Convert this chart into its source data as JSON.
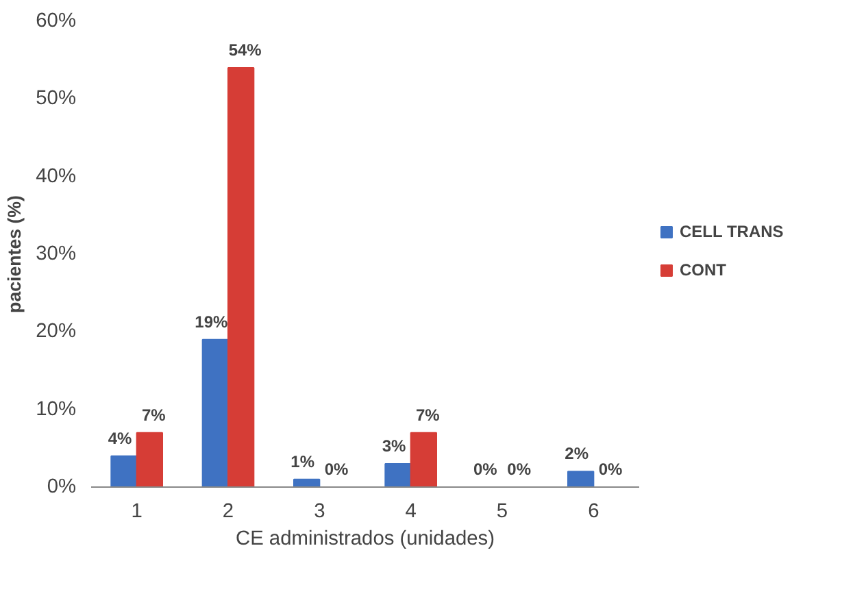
{
  "chart_data": {
    "type": "bar",
    "xlabel": "CE administrados (unidades)",
    "ylabel": "pacientes (%)",
    "categories": [
      "1",
      "2",
      "3",
      "4",
      "5",
      "6"
    ],
    "series": [
      {
        "name": "CELL TRANS",
        "color": "#3f72c2",
        "values": [
          4,
          19,
          1,
          3,
          0,
          2
        ],
        "value_labels": [
          "4%",
          "19%",
          "1%",
          "3%",
          "0%",
          "2%"
        ]
      },
      {
        "name": "CONT",
        "color": "#d63d36",
        "values": [
          7,
          54,
          0,
          7,
          0,
          0
        ],
        "value_labels": [
          "7%",
          "54%",
          "0%",
          "7%",
          "0%",
          "0%"
        ]
      }
    ],
    "ylim": [
      0,
      60
    ],
    "yticks": [
      {
        "value": 0,
        "label": "0%"
      },
      {
        "value": 10,
        "label": "10%"
      },
      {
        "value": 20,
        "label": "20%"
      },
      {
        "value": 30,
        "label": "30%"
      },
      {
        "value": 40,
        "label": "40%"
      },
      {
        "value": 50,
        "label": "50%"
      },
      {
        "value": 60,
        "label": "60%"
      }
    ],
    "grid": false,
    "legend": "right"
  }
}
